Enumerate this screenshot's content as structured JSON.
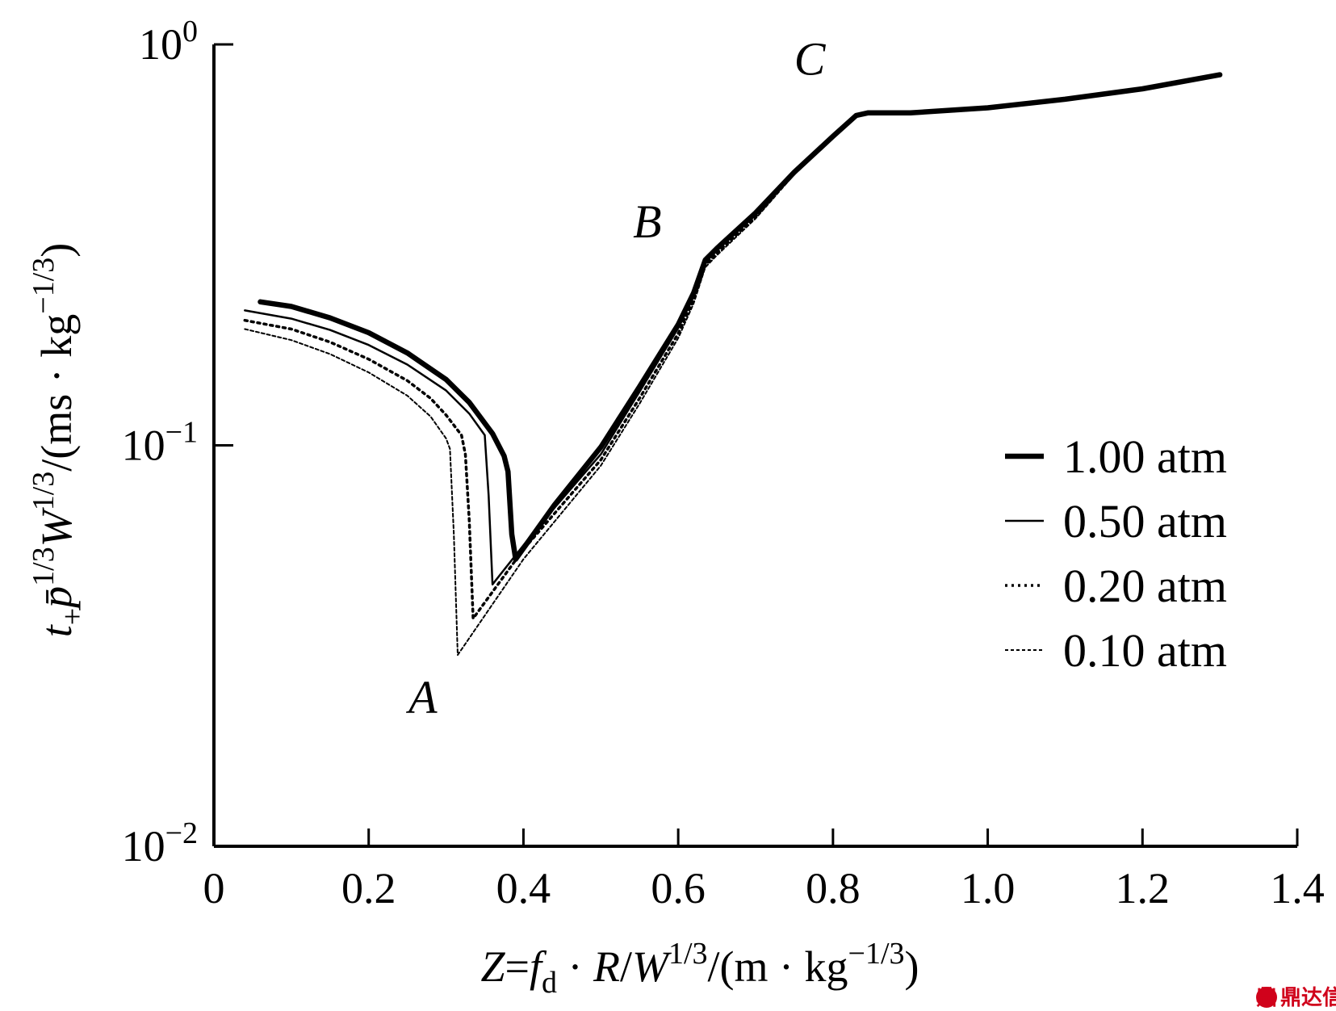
{
  "chart_data": {
    "type": "line",
    "xlabel": "Z=f_d · R/W^1/3/(m · kg^−1/3)",
    "ylabel": "t_+ p̄^1/3 W^1/3/(ms · kg^−1/3)",
    "xlabel_parts": {
      "z": "Z",
      "eq": "=",
      "f": "f",
      "f_sub": "d",
      "dot1": " · ",
      "r": "R",
      "slash": "/",
      "w": "W",
      "w_sup": "1/3",
      "unit": "/(m · kg",
      "unit_sup": "−1/3",
      "close": ")"
    },
    "ylabel_parts": {
      "t": "t",
      "t_sub": "+",
      "p": "p̄",
      "p_sup": "1/3",
      "w": "W",
      "w_sup": "1/3",
      "unit": "/(ms · kg",
      "unit_sup": "−1/3",
      "close": ")"
    },
    "xlim": [
      0,
      1.4
    ],
    "ylim": [
      0.01,
      1
    ],
    "yscale": "log",
    "x_ticks": [
      {
        "value": 0,
        "label": "0"
      },
      {
        "value": 0.2,
        "label": "0.2"
      },
      {
        "value": 0.4,
        "label": "0.4"
      },
      {
        "value": 0.6,
        "label": "0.6"
      },
      {
        "value": 0.8,
        "label": "0.8"
      },
      {
        "value": 1.0,
        "label": "1.0"
      },
      {
        "value": 1.2,
        "label": "1.2"
      },
      {
        "value": 1.4,
        "label": "1.4"
      }
    ],
    "y_ticks": [
      {
        "value": 0.01,
        "base": "10",
        "exp": "−2"
      },
      {
        "value": 0.1,
        "base": "10",
        "exp": "−1"
      },
      {
        "value": 1,
        "base": "10",
        "exp": "0"
      }
    ],
    "grid": false,
    "legend_position": "right",
    "series": [
      {
        "name": "1.00 atm",
        "style": "solid-thick",
        "color": "#000000",
        "points": [
          [
            0.06,
            0.228
          ],
          [
            0.1,
            0.222
          ],
          [
            0.15,
            0.208
          ],
          [
            0.2,
            0.191
          ],
          [
            0.25,
            0.17
          ],
          [
            0.3,
            0.146
          ],
          [
            0.33,
            0.128
          ],
          [
            0.36,
            0.107
          ],
          [
            0.375,
            0.094
          ],
          [
            0.38,
            0.086
          ],
          [
            0.385,
            0.06
          ],
          [
            0.39,
            0.052
          ],
          [
            0.44,
            0.071
          ],
          [
            0.5,
            0.099
          ],
          [
            0.55,
            0.14
          ],
          [
            0.6,
            0.2
          ],
          [
            0.62,
            0.24
          ],
          [
            0.635,
            0.29
          ],
          [
            0.65,
            0.31
          ],
          [
            0.7,
            0.38
          ],
          [
            0.75,
            0.48
          ],
          [
            0.8,
            0.59
          ],
          [
            0.83,
            0.665
          ],
          [
            0.845,
            0.675
          ],
          [
            0.9,
            0.675
          ],
          [
            1.0,
            0.695
          ],
          [
            1.1,
            0.73
          ],
          [
            1.2,
            0.775
          ],
          [
            1.3,
            0.84
          ]
        ]
      },
      {
        "name": "0.50 atm",
        "style": "solid-thin",
        "color": "#000000",
        "points": [
          [
            0.04,
            0.217
          ],
          [
            0.1,
            0.207
          ],
          [
            0.15,
            0.194
          ],
          [
            0.2,
            0.178
          ],
          [
            0.25,
            0.159
          ],
          [
            0.3,
            0.137
          ],
          [
            0.33,
            0.12
          ],
          [
            0.35,
            0.106
          ],
          [
            0.355,
            0.075
          ],
          [
            0.36,
            0.045
          ],
          [
            0.42,
            0.063
          ],
          [
            0.5,
            0.095
          ],
          [
            0.55,
            0.136
          ],
          [
            0.6,
            0.196
          ],
          [
            0.62,
            0.236
          ],
          [
            0.635,
            0.286
          ],
          [
            0.65,
            0.306
          ],
          [
            0.7,
            0.376
          ],
          [
            0.75,
            0.478
          ],
          [
            0.8,
            0.588
          ],
          [
            0.83,
            0.663
          ],
          [
            0.845,
            0.673
          ],
          [
            0.9,
            0.673
          ],
          [
            1.0,
            0.693
          ],
          [
            1.1,
            0.728
          ],
          [
            1.2,
            0.773
          ],
          [
            1.3,
            0.838
          ]
        ]
      },
      {
        "name": "0.20 atm",
        "style": "dotted",
        "color": "#000000",
        "points": [
          [
            0.04,
            0.205
          ],
          [
            0.1,
            0.195
          ],
          [
            0.15,
            0.181
          ],
          [
            0.2,
            0.164
          ],
          [
            0.25,
            0.145
          ],
          [
            0.28,
            0.131
          ],
          [
            0.3,
            0.119
          ],
          [
            0.32,
            0.106
          ],
          [
            0.325,
            0.095
          ],
          [
            0.33,
            0.065
          ],
          [
            0.335,
            0.037
          ],
          [
            0.4,
            0.055
          ],
          [
            0.5,
            0.092
          ],
          [
            0.55,
            0.131
          ],
          [
            0.6,
            0.19
          ],
          [
            0.62,
            0.231
          ],
          [
            0.635,
            0.282
          ],
          [
            0.65,
            0.302
          ],
          [
            0.7,
            0.372
          ],
          [
            0.75,
            0.476
          ],
          [
            0.8,
            0.586
          ],
          [
            0.83,
            0.661
          ],
          [
            0.845,
            0.671
          ],
          [
            0.9,
            0.671
          ],
          [
            1.0,
            0.691
          ],
          [
            1.1,
            0.726
          ],
          [
            1.2,
            0.771
          ],
          [
            1.3,
            0.836
          ]
        ]
      },
      {
        "name": "0.10 atm",
        "style": "dashed-thin",
        "color": "#000000",
        "points": [
          [
            0.04,
            0.195
          ],
          [
            0.1,
            0.183
          ],
          [
            0.15,
            0.169
          ],
          [
            0.2,
            0.152
          ],
          [
            0.25,
            0.133
          ],
          [
            0.28,
            0.118
          ],
          [
            0.3,
            0.104
          ],
          [
            0.305,
            0.098
          ],
          [
            0.31,
            0.06
          ],
          [
            0.315,
            0.03
          ],
          [
            0.4,
            0.052
          ],
          [
            0.5,
            0.089
          ],
          [
            0.55,
            0.127
          ],
          [
            0.6,
            0.185
          ],
          [
            0.62,
            0.226
          ],
          [
            0.635,
            0.278
          ],
          [
            0.65,
            0.298
          ],
          [
            0.7,
            0.368
          ],
          [
            0.75,
            0.474
          ],
          [
            0.8,
            0.584
          ],
          [
            0.83,
            0.659
          ],
          [
            0.845,
            0.669
          ],
          [
            0.9,
            0.669
          ],
          [
            1.0,
            0.689
          ],
          [
            1.1,
            0.724
          ],
          [
            1.2,
            0.769
          ],
          [
            1.3,
            0.834
          ]
        ]
      }
    ],
    "annotations": [
      {
        "text": "A",
        "x": 0.27,
        "y": 0.0215
      },
      {
        "text": "B",
        "x": 0.56,
        "y": 0.33
      },
      {
        "text": "C",
        "x": 0.77,
        "y": 0.84
      }
    ]
  },
  "watermark": {
    "glyph": "鼎",
    "text": "鼎达信"
  }
}
